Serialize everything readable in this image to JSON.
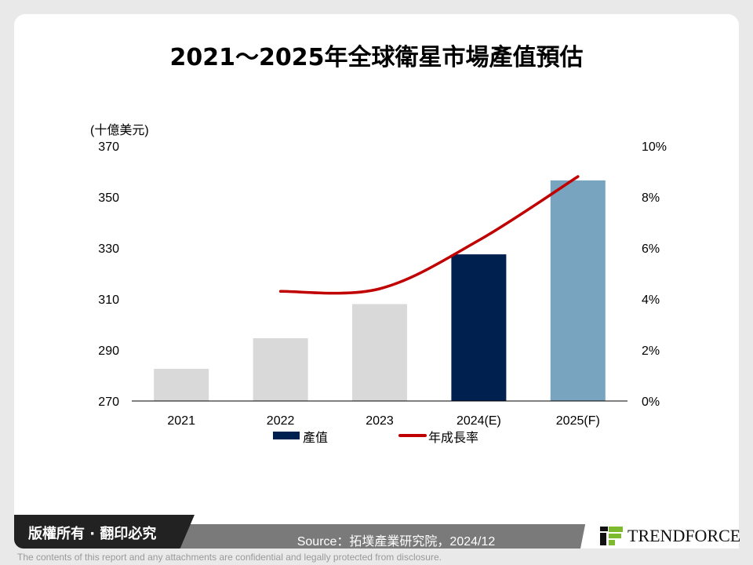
{
  "chart_data": {
    "type": "bar+line",
    "title": "2021～2025年全球衛星市場產值預估",
    "ylabel": "(十億美元)",
    "categories": [
      "2021",
      "2022",
      "2023",
      "2024(E)",
      "2025(F)"
    ],
    "ylim": [
      270,
      370
    ],
    "yticks": [
      "270",
      "290",
      "310",
      "330",
      "350",
      "370"
    ],
    "y2lim": [
      0,
      10
    ],
    "y2ticks": [
      "0%",
      "2%",
      "4%",
      "6%",
      "8%",
      "10%"
    ],
    "series": [
      {
        "name": "產值",
        "type": "bar",
        "values": [
          282.6,
          294.6,
          308,
          327.5,
          356.5
        ],
        "colors": [
          "#d9d9d9",
          "#d9d9d9",
          "#d9d9d9",
          "#002050",
          "#78a4bf"
        ]
      },
      {
        "name": "年成長率",
        "type": "line",
        "axis": "right",
        "values": [
          null,
          4.3,
          4.4,
          6.3,
          8.8
        ],
        "color": "#c00000"
      }
    ],
    "legend": "bottom",
    "grid": false
  },
  "footer": {
    "copyright": "版權所有 · 翻印必究",
    "source": "Source：拓墣產業研究院，2024/12",
    "brand": "TRENDFORCE",
    "disclaimer": "The contents of this report and any attachments are confidential and legally protected from disclosure."
  }
}
